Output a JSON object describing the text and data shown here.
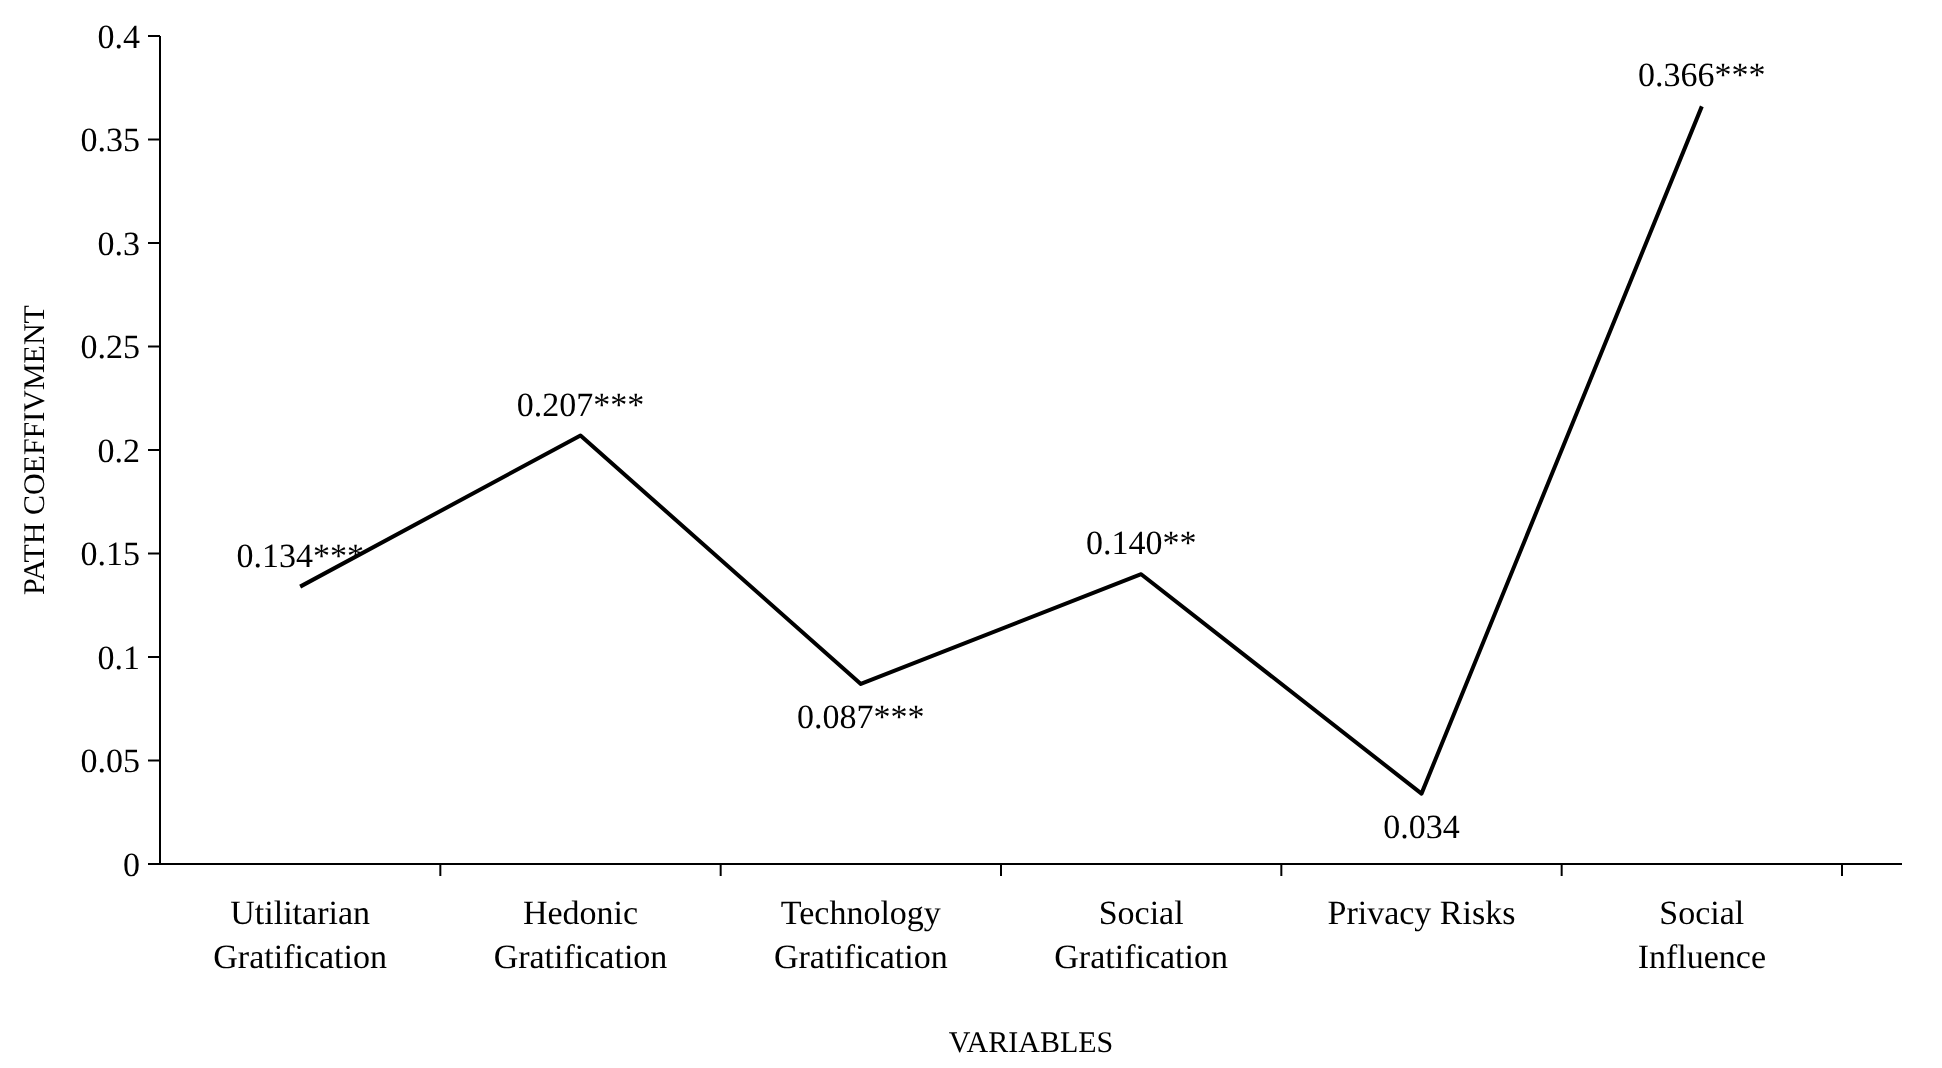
{
  "chart_data": {
    "type": "line",
    "xlabel": "VARIABLES",
    "ylabel": "PATH COEFFIVMENT",
    "categories": [
      "Utilitarian\nGratification",
      "Hedonic\nGratification",
      "Technology\nGratification",
      "Social\nGratification",
      "Privacy Risks",
      "Social\nInfluence"
    ],
    "series": [
      {
        "color": "#000000",
        "values": [
          0.134,
          0.207,
          0.087,
          0.14,
          0.034,
          0.366
        ],
        "value_labels": [
          "0.134***",
          "0.207***",
          "0.087***",
          "0.140**",
          "0.034",
          "0.366***"
        ]
      }
    ],
    "ylim": [
      0,
      0.4
    ],
    "yticks": [
      0,
      0.05,
      0.1,
      0.15,
      0.2,
      0.25,
      0.3,
      0.35,
      0.4
    ],
    "grid": false,
    "marker": "none",
    "line_style": "solid"
  }
}
